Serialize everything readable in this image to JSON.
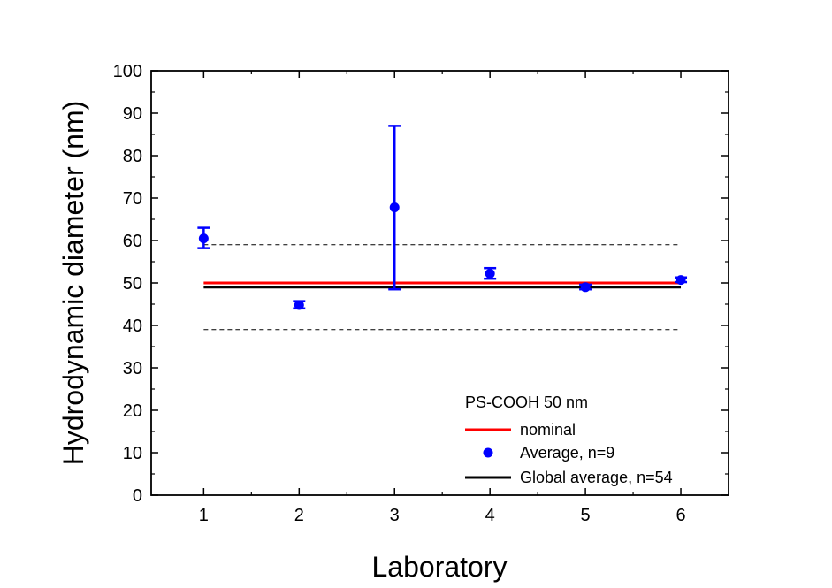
{
  "chart_data": {
    "type": "scatter",
    "xlabel": "Laboratory",
    "ylabel": "Hydrodynamic diameter (nm)",
    "xlim": [
      0.45,
      6.5
    ],
    "ylim": [
      0,
      100
    ],
    "x_ticks": [
      1,
      2,
      3,
      4,
      5,
      6
    ],
    "y_ticks": [
      0,
      10,
      20,
      30,
      40,
      50,
      60,
      70,
      80,
      90,
      100
    ],
    "grid": false,
    "legend_position": "bottom-right",
    "legend_title": "PS-COOH 50 nm",
    "series": [
      {
        "name": "Average, n=9",
        "kind": "points-with-error-bars",
        "color": "#0000ff",
        "x": [
          1,
          2,
          3,
          4,
          5,
          6
        ],
        "y": [
          60.5,
          44.8,
          67.8,
          52.2,
          49.0,
          50.7
        ],
        "y_low": [
          58.2,
          44.0,
          48.5,
          51.0,
          48.5,
          50.2
        ],
        "y_high": [
          63.0,
          45.7,
          87.0,
          53.5,
          49.6,
          51.3
        ]
      },
      {
        "name": "nominal",
        "kind": "line",
        "color": "#ff0000",
        "x": [
          1,
          6
        ],
        "y": [
          50,
          50
        ]
      },
      {
        "name": "Global average, n=54",
        "kind": "line",
        "color": "#000000",
        "x": [
          1,
          6
        ],
        "y": [
          49,
          49
        ]
      },
      {
        "kind": "dashed-line",
        "color": "#000000",
        "x": [
          1,
          6
        ],
        "y": [
          59,
          59
        ]
      },
      {
        "kind": "dashed-line",
        "color": "#000000",
        "x": [
          1,
          6
        ],
        "y": [
          39,
          39
        ]
      }
    ]
  }
}
